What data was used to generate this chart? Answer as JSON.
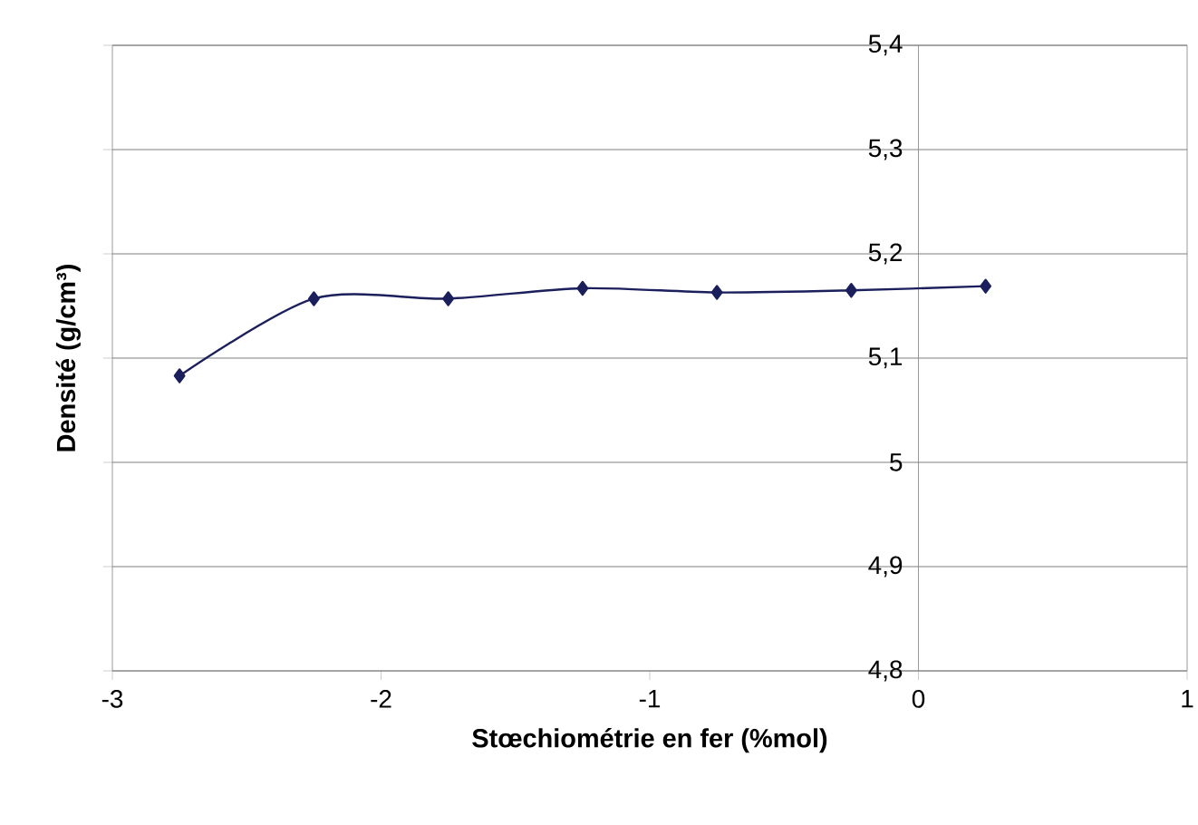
{
  "chart_data": {
    "type": "line",
    "xlabel": "Stœchiométrie en fer (%mol)",
    "ylabel": "Densité (g/cm³)",
    "x": [
      -2.75,
      -2.25,
      -1.75,
      -1.25,
      -0.75,
      -0.25,
      0.25
    ],
    "series": [
      {
        "color": "#1b1f5c",
        "values": [
          5.083,
          5.157,
          5.157,
          5.167,
          5.163,
          5.165,
          5.169
        ]
      }
    ],
    "xlim": [
      -3,
      1
    ],
    "xticks": [
      -3,
      -2,
      -1,
      0,
      1
    ],
    "ylim": [
      4.8,
      5.4
    ],
    "yticks": [
      {
        "value": 4.8,
        "label": "4,8"
      },
      {
        "value": 4.9,
        "label": "4,9"
      },
      {
        "value": 5,
        "label": "5"
      },
      {
        "value": 5.1,
        "label": "5,1"
      },
      {
        "value": 5.2,
        "label": "5,2"
      },
      {
        "value": 5.3,
        "label": "5,3"
      },
      {
        "value": 5.4,
        "label": "5,4"
      }
    ],
    "grid": "y",
    "marker": "diamond",
    "line_style": "solid"
  }
}
